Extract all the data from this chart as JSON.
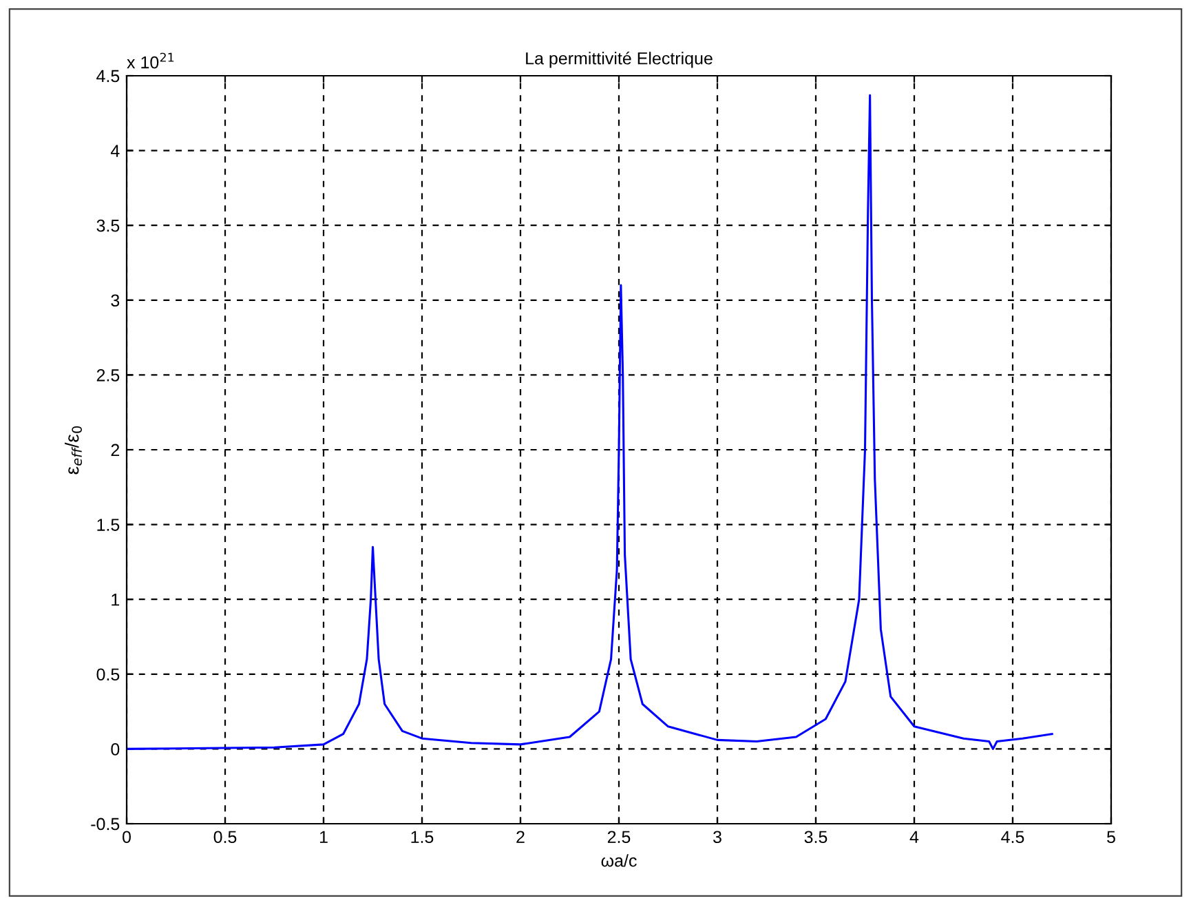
{
  "chart_data": {
    "type": "line",
    "title": "La permittivité Electrique",
    "xlabel": "ωa/c",
    "ylabel": "ε$_{eff}$/ε$_{0}$",
    "annotations": [
      "x 10$^{21}$"
    ],
    "x": [
      0,
      0.75,
      1.0,
      1.1,
      1.18,
      1.22,
      1.24,
      1.25,
      1.26,
      1.28,
      1.31,
      1.4,
      1.5,
      1.75,
      2.0,
      2.25,
      2.4,
      2.46,
      2.49,
      2.5,
      2.51,
      2.52,
      2.53,
      2.56,
      2.62,
      2.75,
      3.0,
      3.2,
      3.4,
      3.55,
      3.65,
      3.72,
      3.75,
      3.765,
      3.775,
      3.785,
      3.8,
      3.83,
      3.88,
      4.0,
      4.25,
      4.38,
      4.4,
      4.42,
      4.55,
      4.7
    ],
    "series": [
      {
        "color": "#0000ff",
        "values": [
          0,
          0.01,
          0.03,
          0.1,
          0.3,
          0.6,
          1.0,
          1.35,
          1.1,
          0.6,
          0.3,
          0.12,
          0.07,
          0.04,
          0.03,
          0.08,
          0.25,
          0.6,
          1.2,
          2.0,
          3.1,
          2.5,
          1.3,
          0.6,
          0.3,
          0.15,
          0.06,
          0.05,
          0.08,
          0.2,
          0.45,
          1.0,
          2.0,
          3.6,
          4.37,
          3.0,
          1.8,
          0.8,
          0.35,
          0.15,
          0.07,
          0.05,
          0.0,
          0.05,
          0.07,
          0.1
        ]
      }
    ],
    "xlim": [
      0,
      5
    ],
    "xticks": [
      0,
      0.5,
      1,
      1.5,
      2,
      2.5,
      3,
      3.5,
      4,
      4.5,
      5
    ],
    "ylim": [
      -0.5,
      4.5
    ],
    "yticks": [
      -0.5,
      0,
      0.5,
      1,
      1.5,
      2,
      2.5,
      3,
      3.5,
      4,
      4.5
    ],
    "grid": true,
    "marker": "none",
    "line_style": "solid"
  }
}
